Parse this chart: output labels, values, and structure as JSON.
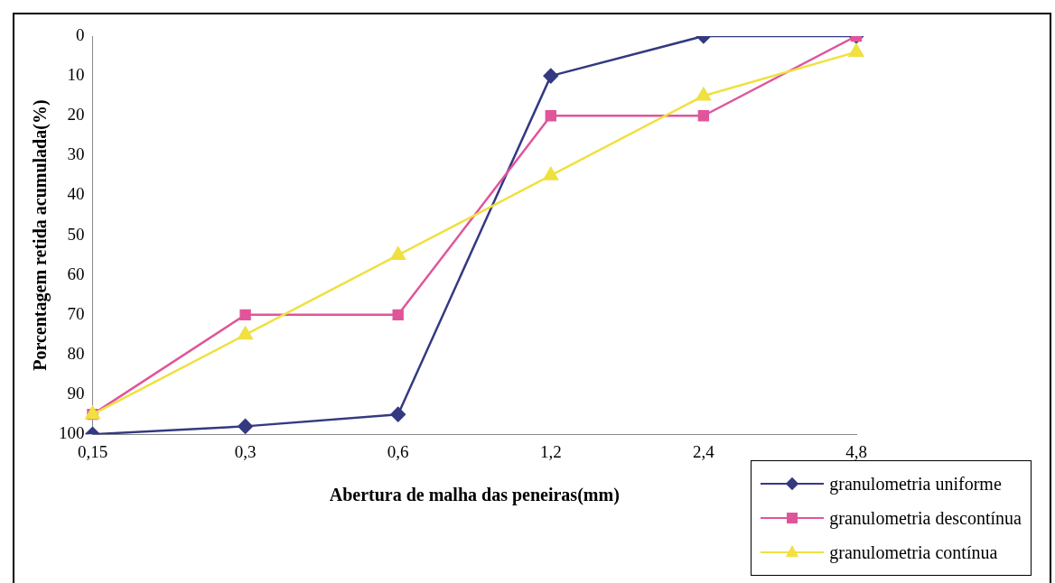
{
  "chart_data": {
    "type": "line",
    "xlabel": "Abertura de malha das peneiras(mm)",
    "ylabel": "Porcentagem retida acumulada(%)",
    "categories": [
      "0,15",
      "0,3",
      "0,6",
      "1,2",
      "2,4",
      "4,8"
    ],
    "series": [
      {
        "name": "granulometria uniforme",
        "color": "#333a80",
        "marker": "diamond",
        "values": [
          100,
          98,
          95,
          10,
          0,
          0
        ]
      },
      {
        "name": "granulometria descontínua",
        "color": "#e0559a",
        "marker": "square",
        "values": [
          95,
          70,
          70,
          20,
          20,
          0
        ]
      },
      {
        "name": "granulometria contínua",
        "color": "#f0e040",
        "marker": "triangle",
        "values": [
          95,
          75,
          55,
          35,
          15,
          4
        ]
      }
    ],
    "ylim": [
      100,
      0
    ],
    "yticks": [
      0,
      10,
      20,
      30,
      40,
      50,
      60,
      70,
      80,
      90,
      100
    ],
    "grid": false,
    "legend": "bottom right"
  }
}
